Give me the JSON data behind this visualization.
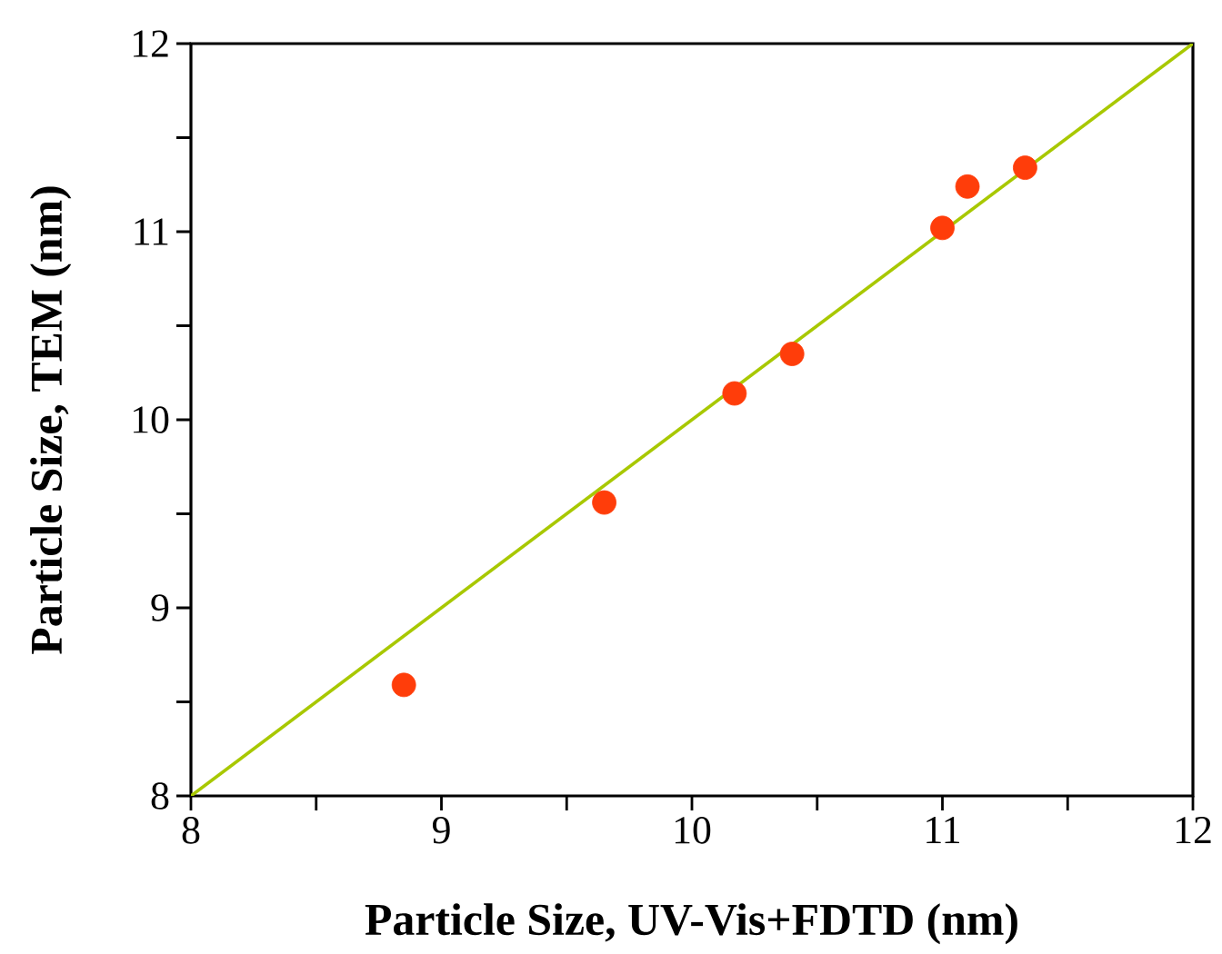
{
  "chart_data": {
    "type": "scatter",
    "xlabel": "Particle Size, UV-Vis+FDTD (nm)",
    "ylabel": "Particle Size, TEM (nm)",
    "xlim": [
      8,
      12
    ],
    "ylim": [
      8,
      12
    ],
    "xticks": [
      8,
      {
        "value": 8.5,
        "label": null
      },
      9,
      {
        "value": 9.5,
        "label": null
      },
      10,
      {
        "value": 10.5,
        "label": null
      },
      11,
      {
        "value": 11.5,
        "label": null
      },
      12
    ],
    "yticks": [
      8,
      {
        "value": 8.5,
        "label": null
      },
      9,
      {
        "value": 9.5,
        "label": null
      },
      10,
      {
        "value": 10.5,
        "label": null
      },
      11,
      {
        "value": 11.5,
        "label": null
      },
      12
    ],
    "grid": false,
    "marker": "circle",
    "series": [
      {
        "type": "line",
        "color": "#a8c800",
        "marker": "none",
        "x": [
          8,
          12
        ],
        "values": [
          8,
          12
        ]
      },
      {
        "color": "#ff3d0a",
        "x": [
          8.85,
          9.65,
          10.17,
          10.4,
          11.0,
          11.1,
          11.33
        ],
        "values": [
          8.59,
          9.56,
          10.14,
          10.35,
          11.02,
          11.24,
          11.34
        ]
      }
    ]
  }
}
